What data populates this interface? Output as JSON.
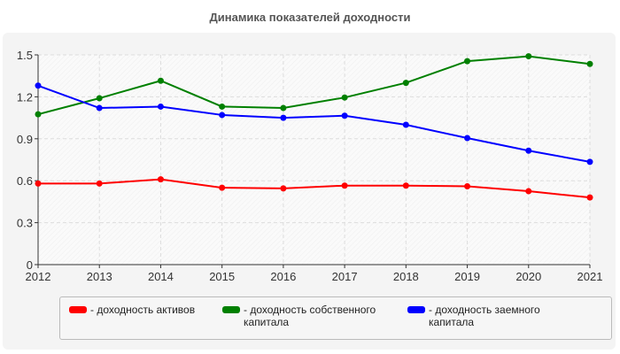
{
  "chart_data": {
    "type": "line",
    "title": "Динамика показателей доходности",
    "x": [
      2012,
      2013,
      2014,
      2015,
      2016,
      2017,
      2018,
      2019,
      2020,
      2021
    ],
    "ylim": [
      0,
      1.5
    ],
    "yticks": [
      "0",
      "0.3",
      "0.6",
      "0.9",
      "1.2",
      "1.5"
    ],
    "grid": true,
    "legend": "bottom",
    "series": [
      {
        "name": "- доходность активов",
        "color": "#ff0000",
        "values": [
          0.58,
          0.58,
          0.61,
          0.55,
          0.545,
          0.565,
          0.565,
          0.56,
          0.525,
          0.48
        ]
      },
      {
        "name": "- доходность собственного капитала",
        "color": "#008000",
        "values": [
          1.075,
          1.19,
          1.315,
          1.13,
          1.12,
          1.195,
          1.3,
          1.455,
          1.49,
          1.435
        ]
      },
      {
        "name": "- доходность заемного капитала",
        "color": "#0000ff",
        "values": [
          1.28,
          1.12,
          1.13,
          1.07,
          1.05,
          1.065,
          1.0,
          0.905,
          0.815,
          0.735
        ]
      }
    ]
  }
}
